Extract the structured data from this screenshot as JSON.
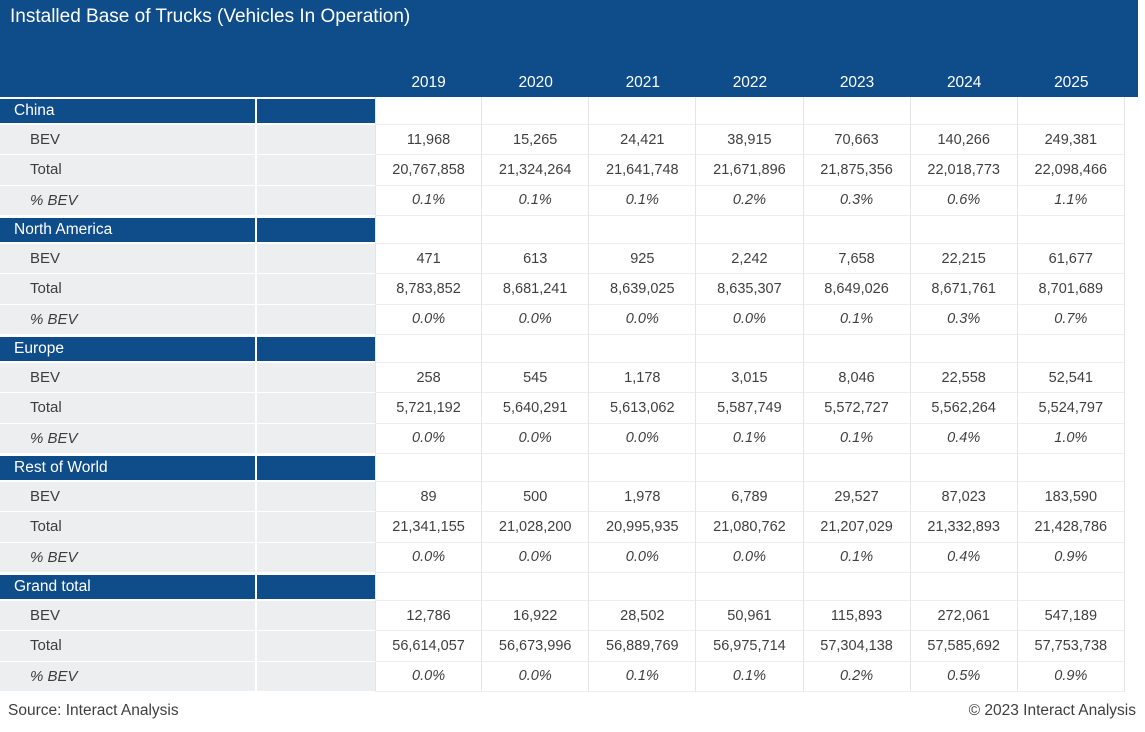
{
  "title": "Installed Base of Trucks (Vehicles In Operation)",
  "footer": {
    "source": "Source: Interact Analysis",
    "copyright": "© 2023 Interact Analysis"
  },
  "colors": {
    "navy": "#0e4c8a",
    "panel_gray": "#edeef0",
    "gridline": "#e3e5e7",
    "gridline_light": "#ededee",
    "value_text": "#404040"
  },
  "chart_data": {
    "type": "table",
    "title": "Installed Base of Trucks (Vehicles In Operation)",
    "columns": [
      "2019",
      "2020",
      "2021",
      "2022",
      "2023",
      "2024",
      "2025"
    ],
    "sections": [
      {
        "name": "China",
        "rows": [
          {
            "label": "BEV",
            "values": [
              "11,968",
              "15,265",
              "24,421",
              "38,915",
              "70,663",
              "140,266",
              "249,381"
            ]
          },
          {
            "label": "Total",
            "values": [
              "20,767,858",
              "21,324,264",
              "21,641,748",
              "21,671,896",
              "21,875,356",
              "22,018,773",
              "22,098,466"
            ]
          },
          {
            "label": "% BEV",
            "values": [
              "0.1%",
              "0.1%",
              "0.1%",
              "0.2%",
              "0.3%",
              "0.6%",
              "1.1%"
            ]
          }
        ]
      },
      {
        "name": "North America",
        "rows": [
          {
            "label": "BEV",
            "values": [
              "471",
              "613",
              "925",
              "2,242",
              "7,658",
              "22,215",
              "61,677"
            ]
          },
          {
            "label": "Total",
            "values": [
              "8,783,852",
              "8,681,241",
              "8,639,025",
              "8,635,307",
              "8,649,026",
              "8,671,761",
              "8,701,689"
            ]
          },
          {
            "label": "% BEV",
            "values": [
              "0.0%",
              "0.0%",
              "0.0%",
              "0.0%",
              "0.1%",
              "0.3%",
              "0.7%"
            ]
          }
        ]
      },
      {
        "name": "Europe",
        "rows": [
          {
            "label": "BEV",
            "values": [
              "258",
              "545",
              "1,178",
              "3,015",
              "8,046",
              "22,558",
              "52,541"
            ]
          },
          {
            "label": "Total",
            "values": [
              "5,721,192",
              "5,640,291",
              "5,613,062",
              "5,587,749",
              "5,572,727",
              "5,562,264",
              "5,524,797"
            ]
          },
          {
            "label": "% BEV",
            "values": [
              "0.0%",
              "0.0%",
              "0.0%",
              "0.1%",
              "0.1%",
              "0.4%",
              "1.0%"
            ]
          }
        ]
      },
      {
        "name": "Rest of World",
        "rows": [
          {
            "label": "BEV",
            "values": [
              "89",
              "500",
              "1,978",
              "6,789",
              "29,527",
              "87,023",
              "183,590"
            ]
          },
          {
            "label": "Total",
            "values": [
              "21,341,155",
              "21,028,200",
              "20,995,935",
              "21,080,762",
              "21,207,029",
              "21,332,893",
              "21,428,786"
            ]
          },
          {
            "label": "% BEV",
            "values": [
              "0.0%",
              "0.0%",
              "0.0%",
              "0.0%",
              "0.1%",
              "0.4%",
              "0.9%"
            ]
          }
        ]
      },
      {
        "name": "Grand total",
        "rows": [
          {
            "label": "BEV",
            "values": [
              "12,786",
              "16,922",
              "28,502",
              "50,961",
              "115,893",
              "272,061",
              "547,189"
            ]
          },
          {
            "label": "Total",
            "values": [
              "56,614,057",
              "56,673,996",
              "56,889,769",
              "56,975,714",
              "57,304,138",
              "57,585,692",
              "57,753,738"
            ]
          },
          {
            "label": "% BEV",
            "values": [
              "0.0%",
              "0.0%",
              "0.1%",
              "0.1%",
              "0.2%",
              "0.5%",
              "0.9%"
            ]
          }
        ]
      }
    ]
  }
}
